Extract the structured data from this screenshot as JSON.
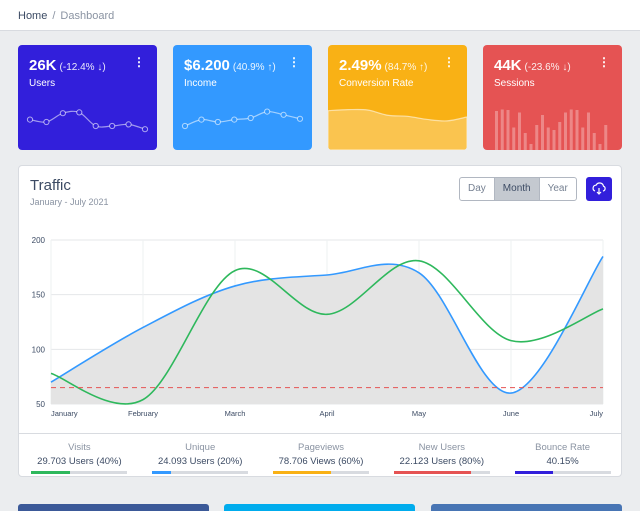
{
  "breadcrumb": {
    "home": "Home",
    "separator": "/",
    "current": "Dashboard"
  },
  "widgets": [
    {
      "value": "26K",
      "change": "(-12.4% ↓)",
      "label": "Users",
      "color": "#321fdb",
      "chart": "line",
      "points": [
        58,
        55,
        66,
        67,
        50,
        50,
        52,
        46
      ]
    },
    {
      "value": "$6.200",
      "change": "(40.9% ↑)",
      "label": "Income",
      "color": "#3399ff",
      "chart": "line",
      "points": [
        50,
        58,
        55,
        58,
        60,
        68,
        64,
        59
      ]
    },
    {
      "value": "2.49%",
      "change": "(84.7% ↑)",
      "label": "Conversion Rate",
      "color": "#f9b115",
      "chart": "area",
      "points": [
        78,
        81,
        80,
        65,
        62,
        53,
        49,
        60
      ]
    },
    {
      "value": "44K",
      "change": "(-23.6% ↓)",
      "label": "Sessions",
      "color": "#e55353",
      "chart": "bar",
      "points": [
        78,
        81,
        80,
        45,
        75,
        34,
        12,
        50,
        70,
        45,
        40,
        56,
        75,
        81,
        80,
        45,
        75,
        34,
        12,
        50
      ]
    }
  ],
  "traffic": {
    "title": "Traffic",
    "subtitle": "January - July 2021",
    "periods": [
      "Day",
      "Month",
      "Year"
    ],
    "selected_period": "Month"
  },
  "chart_data": {
    "type": "line",
    "categories": [
      "January",
      "February",
      "March",
      "April",
      "May",
      "June",
      "July"
    ],
    "ylim": [
      50,
      200
    ],
    "yticks": [
      50,
      100,
      150,
      200
    ],
    "series": [
      {
        "values": [
          70,
          120,
          158,
          168,
          170,
          60,
          185
        ],
        "color": "#3399ff",
        "fill": "#e4e4e4"
      },
      {
        "values": [
          78,
          54,
          172,
          132,
          181,
          108,
          137
        ],
        "color": "#2eb85c"
      },
      {
        "values": [
          65,
          65,
          65,
          65,
          65,
          65,
          65
        ],
        "color": "#e55353",
        "dash": true
      }
    ],
    "grid": true,
    "legend": false
  },
  "stats": [
    {
      "title": "Visits",
      "value": "29.703 Users (40%)",
      "percent": 40,
      "color": "#2eb85c"
    },
    {
      "title": "Unique",
      "value": "24.093 Users (20%)",
      "percent": 20,
      "color": "#3399ff"
    },
    {
      "title": "Pageviews",
      "value": "78.706 Views (60%)",
      "percent": 60,
      "color": "#f9b115"
    },
    {
      "title": "New Users",
      "value": "22.123 Users (80%)",
      "percent": 80,
      "color": "#e55353"
    },
    {
      "title": "Bounce Rate",
      "value": "40.15%",
      "percent": 40,
      "color": "#321fdb"
    }
  ],
  "social_colors": [
    "#3b5998",
    "#00aced",
    "#4875b4"
  ],
  "icons": {
    "menu": "more-vertical-icon",
    "download": "cloud-download-icon"
  }
}
